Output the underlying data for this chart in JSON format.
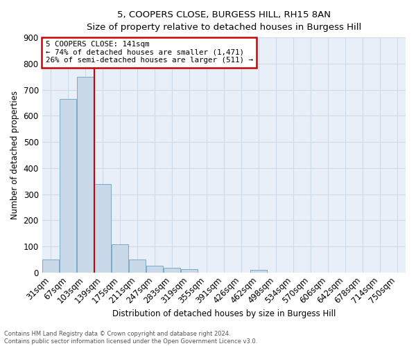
{
  "title_line1": "5, COOPERS CLOSE, BURGESS HILL, RH15 8AN",
  "title_line2": "Size of property relative to detached houses in Burgess Hill",
  "xlabel": "Distribution of detached houses by size in Burgess Hill",
  "ylabel": "Number of detached properties",
  "bar_labels": [
    "31sqm",
    "67sqm",
    "103sqm",
    "139sqm",
    "175sqm",
    "211sqm",
    "247sqm",
    "283sqm",
    "319sqm",
    "355sqm",
    "391sqm",
    "426sqm",
    "462sqm",
    "498sqm",
    "534sqm",
    "570sqm",
    "606sqm",
    "642sqm",
    "678sqm",
    "714sqm",
    "750sqm"
  ],
  "bar_values": [
    50,
    665,
    750,
    338,
    108,
    50,
    25,
    18,
    13,
    0,
    0,
    0,
    10,
    0,
    0,
    0,
    0,
    0,
    0,
    0,
    0
  ],
  "bar_color": "#c9d9ea",
  "bar_edge_color": "#7aaac8",
  "annotation_text": "5 COOPERS CLOSE: 141sqm\n← 74% of detached houses are smaller (1,471)\n26% of semi-detached houses are larger (511) →",
  "annotation_box_color": "#ffffff",
  "annotation_box_edge_color": "#cc0000",
  "vline_color": "#cc0000",
  "grid_color": "#cddaea",
  "background_color": "#e8eff8",
  "footer_text": "Contains HM Land Registry data © Crown copyright and database right 2024.\nContains public sector information licensed under the Open Government Licence v3.0.",
  "ylim": [
    0,
    900
  ],
  "yticks": [
    0,
    100,
    200,
    300,
    400,
    500,
    600,
    700,
    800,
    900
  ],
  "vline_index": 3
}
